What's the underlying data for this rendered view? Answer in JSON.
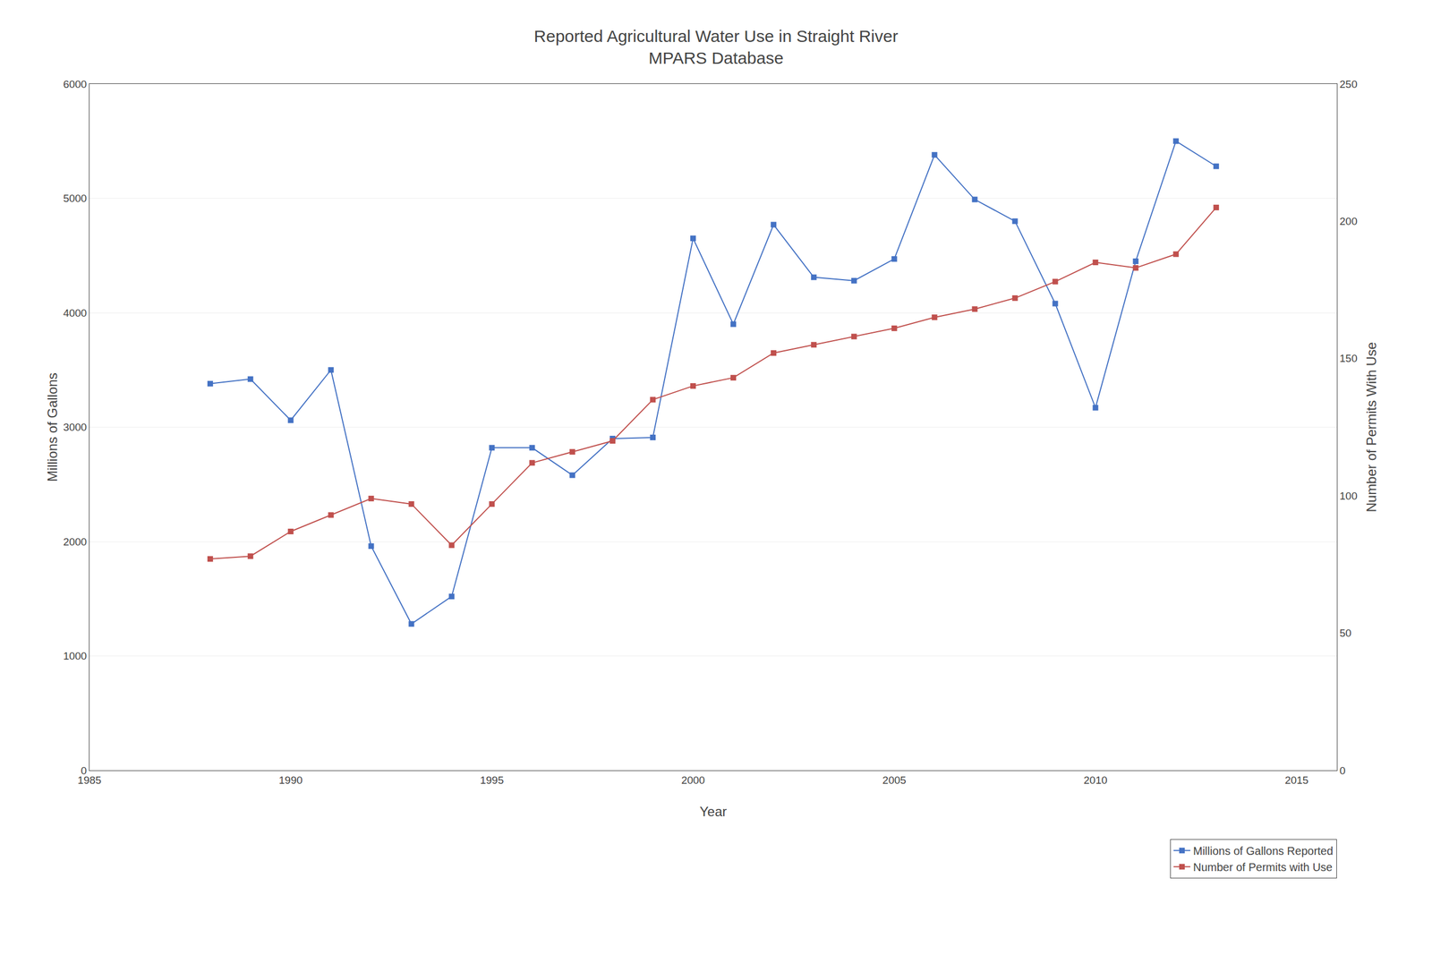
{
  "chart_data": {
    "type": "line",
    "title": "Reported Agricultural Water Use in Straight River\nMPARS Database",
    "xlabel": "Year",
    "ylabel": "Millions of Gallons",
    "y2label": "Number of Permits With Use",
    "x": [
      1988,
      1989,
      1990,
      1991,
      1992,
      1993,
      1994,
      1995,
      1996,
      1997,
      1998,
      1999,
      2000,
      2001,
      2002,
      2003,
      2004,
      2005,
      2006,
      2007,
      2008,
      2009,
      2010,
      2011,
      2012,
      2013
    ],
    "series": [
      {
        "name": "Millions of Gallons Reported",
        "color": "#4472C4",
        "marker": "square",
        "line_style": "solid",
        "values": [
          3380,
          3420,
          3060,
          3500,
          1960,
          1280,
          1520,
          2820,
          2820,
          2580,
          2900,
          2910,
          4650,
          3900,
          4770,
          4310,
          4280,
          4470,
          5380,
          4990,
          4800,
          4080,
          3170,
          4450,
          5500,
          5280
        ]
      },
      {
        "name": "Number of Permits with Use",
        "color": "#C0504D",
        "marker": "square",
        "line_style": "solid",
        "axis": "y2",
        "values": [
          77,
          78,
          87,
          93,
          99,
          97,
          82,
          97,
          112,
          116,
          120,
          135,
          140,
          143,
          152,
          155,
          158,
          161,
          165,
          168,
          172,
          178,
          185,
          183,
          188,
          205
        ]
      }
    ],
    "xlim": [
      1985,
      2016
    ],
    "xticks": [
      1985,
      1990,
      1995,
      2000,
      2005,
      2010,
      2015
    ],
    "ylim": [
      0,
      6000
    ],
    "yticks": [
      0,
      1000,
      2000,
      3000,
      4000,
      5000,
      6000
    ],
    "y2lim": [
      0,
      250
    ],
    "y2ticks": [
      0,
      50,
      100,
      150,
      200,
      250
    ],
    "grid": true,
    "legend": "lower right"
  }
}
